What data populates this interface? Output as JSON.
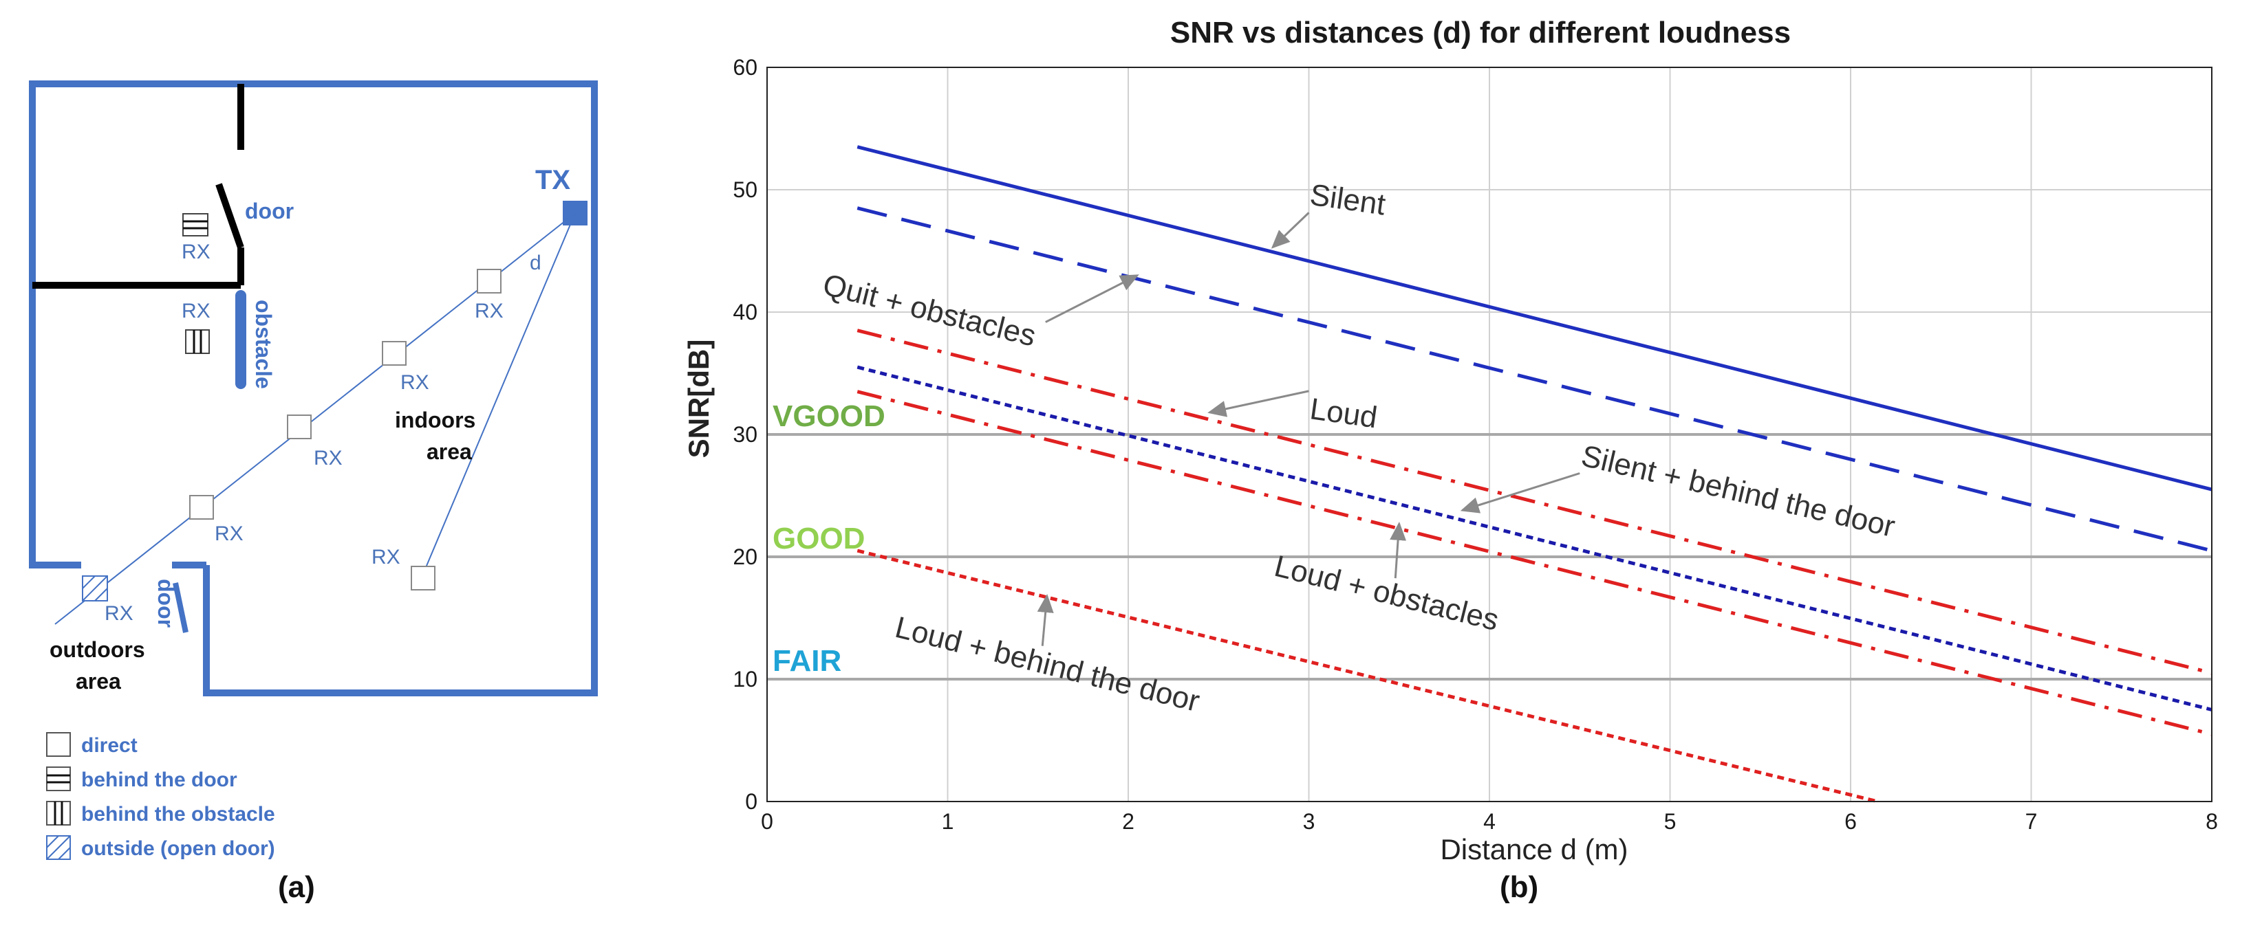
{
  "panel_a": {
    "caption": "(a)",
    "tx_label": "TX",
    "d_label": "d",
    "door_label_top": "door",
    "door_label_bottom": "door",
    "obstacle_label": "obstacle",
    "rx_label": "RX",
    "indoors_line1": "indoors",
    "indoors_line2": "area",
    "outdoors_line1": "outdoors",
    "outdoors_line2": "area",
    "legend": [
      {
        "symbol": "direct-icon",
        "label": "direct"
      },
      {
        "symbol": "behind-door-icon",
        "label": "behind the door"
      },
      {
        "symbol": "behind-obstacle-icon",
        "label": "behind the obstacle"
      },
      {
        "symbol": "outside-icon",
        "label": "outside (open door)"
      }
    ],
    "colors": {
      "wall": "#4472c4",
      "text": "#4a73b8",
      "black_wall": "#000000"
    }
  },
  "panel_b_caption": "(b)",
  "chart_data": {
    "type": "line",
    "title": "SNR vs distances (d)  for different loudness",
    "xlabel": "Distance d (m)",
    "ylabel": "SNR[dB]",
    "xlim": [
      0,
      8
    ],
    "ylim": [
      0,
      60
    ],
    "xticks": [
      "0",
      "1",
      "2",
      "3",
      "4",
      "5",
      "6",
      "7",
      "8"
    ],
    "yticks": [
      "0",
      "10",
      "20",
      "30",
      "40",
      "50",
      "60"
    ],
    "grid": true,
    "series": [
      {
        "name": "Silent",
        "color": "#1f2fbf",
        "dash": "solid",
        "x": [
          0.5,
          8
        ],
        "y": [
          53.5,
          25.5
        ]
      },
      {
        "name": "Quit + obstacles",
        "color": "#1f2fbf",
        "dash": "long-dash",
        "x": [
          0.5,
          8
        ],
        "y": [
          48.5,
          20.5
        ]
      },
      {
        "name": "Loud",
        "color": "#e02020",
        "dash": "dash-dot",
        "x": [
          0.5,
          8
        ],
        "y": [
          38.5,
          10.5
        ]
      },
      {
        "name": "Silent + behind the door",
        "color": "#1a1aaa",
        "dash": "dotted",
        "x": [
          0.5,
          8
        ],
        "y": [
          35.5,
          7.5
        ]
      },
      {
        "name": "Loud + obstacles",
        "color": "#e02020",
        "dash": "dash-dot",
        "x": [
          0.5,
          8
        ],
        "y": [
          33.5,
          5.5
        ]
      },
      {
        "name": "Loud + behind the door",
        "color": "#e02020",
        "dash": "dotted",
        "x": [
          0.5,
          6.15
        ],
        "y": [
          20.5,
          0
        ]
      }
    ],
    "thresholds": [
      {
        "label": "VGOOD",
        "value": 30,
        "color": "#70ad47"
      },
      {
        "label": "GOOD",
        "value": 20,
        "color": "#92d050"
      },
      {
        "label": "FAIR",
        "value": 10,
        "color": "#1fa3d6"
      }
    ],
    "annotations": [
      {
        "text": "Silent",
        "rotate": 8,
        "at": [
          3.0,
          48.8
        ],
        "arrow_to": [
          2.8,
          45.3
        ]
      },
      {
        "text": "Quit + obstacles",
        "rotate": 14,
        "at": [
          0.3,
          41.5
        ],
        "arrow_to": [
          2.05,
          43.0
        ]
      },
      {
        "text": "Loud",
        "rotate": 8,
        "at": [
          3.0,
          31.3
        ],
        "arrow_to": [
          2.45,
          31.8
        ]
      },
      {
        "text": "Silent + behind the door",
        "rotate": 13,
        "at": [
          4.5,
          27.5
        ],
        "arrow_to": [
          3.85,
          23.8
        ]
      },
      {
        "text": "Loud + obstacles",
        "rotate": 14,
        "at": [
          2.8,
          18.5
        ],
        "arrow_to": [
          3.5,
          22.7
        ]
      },
      {
        "text": "Loud + behind the door",
        "rotate": 14,
        "at": [
          0.7,
          13.5
        ],
        "arrow_to": [
          1.55,
          16.8
        ]
      }
    ]
  }
}
